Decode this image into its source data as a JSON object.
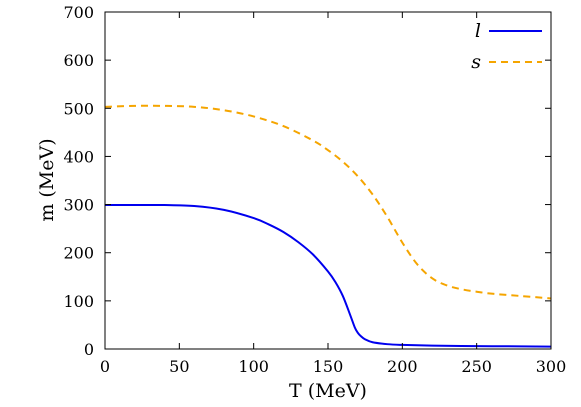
{
  "chart_data": {
    "type": "line",
    "xlabel": "T (MeV)",
    "ylabel": "m (MeV)",
    "xlim": [
      0,
      300
    ],
    "ylim": [
      0,
      700
    ],
    "x_ticks": [
      0,
      50,
      100,
      150,
      200,
      250,
      300
    ],
    "y_ticks": [
      0,
      100,
      200,
      300,
      400,
      500,
      600,
      700
    ],
    "grid": false,
    "legend_position": "top-right",
    "series": [
      {
        "name": "l",
        "color": "#0000ee",
        "style": "solid",
        "x": [
          0,
          20,
          40,
          60,
          80,
          100,
          110,
          120,
          130,
          140,
          150,
          155,
          160,
          165,
          168,
          170,
          172,
          175,
          180,
          190,
          200,
          220,
          250,
          280,
          300
        ],
        "y": [
          299,
          299,
          299,
          297,
          289,
          272,
          259,
          243,
          222,
          196,
          161,
          139,
          110,
          70,
          45,
          34,
          27,
          20,
          14,
          10,
          8.5,
          7,
          6,
          5.5,
          5
        ]
      },
      {
        "name": "s",
        "color": "#f5a500",
        "style": "dashed",
        "x": [
          0,
          20,
          40,
          60,
          80,
          100,
          120,
          140,
          150,
          160,
          170,
          180,
          190,
          200,
          210,
          220,
          230,
          240,
          250,
          260,
          280,
          300
        ],
        "y": [
          503,
          505,
          505,
          503,
          496,
          483,
          463,
          433,
          413,
          389,
          359,
          321,
          274,
          221,
          176,
          147,
          132,
          124,
          119,
          115,
          110,
          105
        ]
      }
    ]
  }
}
